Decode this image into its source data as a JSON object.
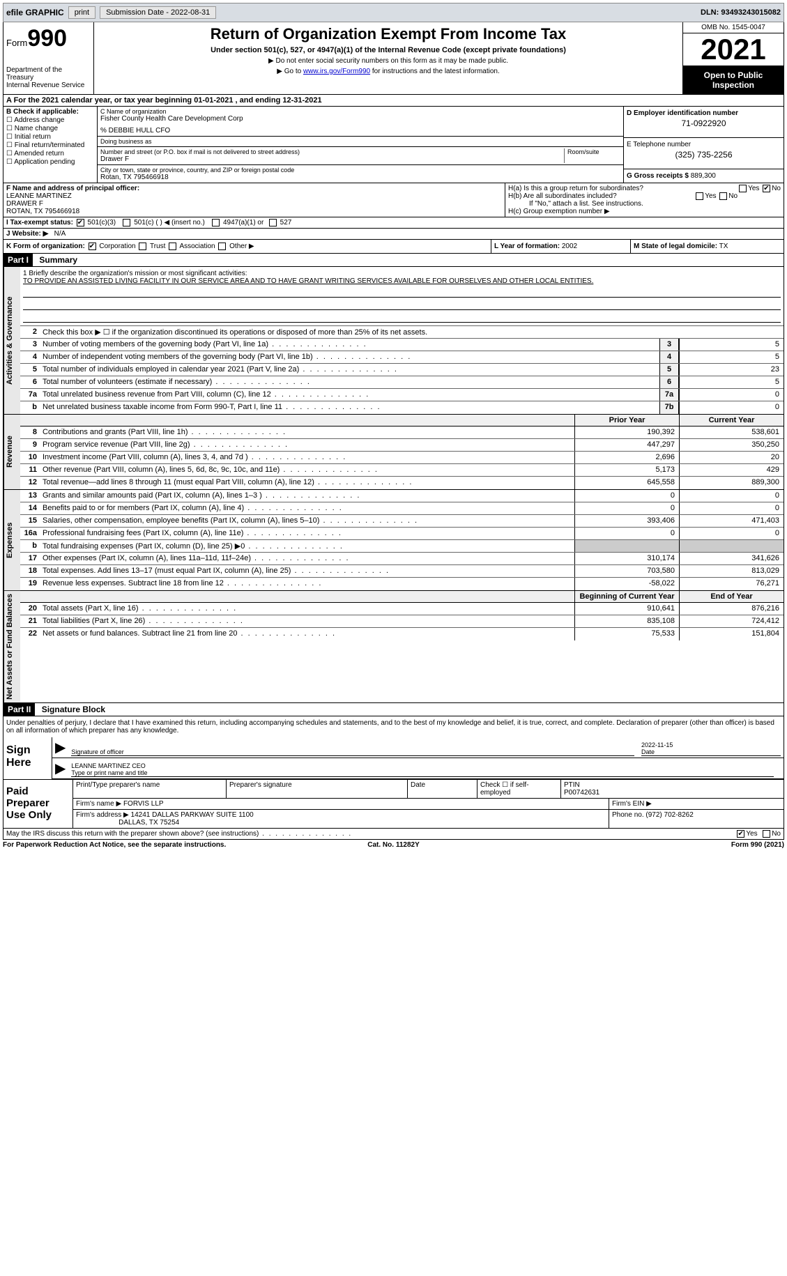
{
  "topbar": {
    "efile": "efile GRAPHIC",
    "print": "print",
    "submission_label": "Submission Date - 2022-08-31",
    "dln": "DLN: 93493243015082"
  },
  "header": {
    "form_label": "Form",
    "form_number": "990",
    "dept": "Department of the Treasury",
    "irs": "Internal Revenue Service",
    "title": "Return of Organization Exempt From Income Tax",
    "subtitle": "Under section 501(c), 527, or 4947(a)(1) of the Internal Revenue Code (except private foundations)",
    "note1": "▶ Do not enter social security numbers on this form as it may be made public.",
    "note2_pre": "▶ Go to ",
    "note2_link": "www.irs.gov/Form990",
    "note2_post": " for instructions and the latest information.",
    "omb": "OMB No. 1545-0047",
    "year": "2021",
    "open": "Open to Public Inspection"
  },
  "line_a": "A For the 2021 calendar year, or tax year beginning 01-01-2021   , and ending 12-31-2021",
  "col_b": {
    "label": "B Check if applicable:",
    "items": [
      "Address change",
      "Name change",
      "Initial return",
      "Final return/terminated",
      "Amended return",
      "Application pending"
    ]
  },
  "col_c": {
    "name_lbl": "C Name of organization",
    "name": "Fisher County Health Care Development Corp",
    "care_of": "% DEBBIE HULL CFO",
    "dba_lbl": "Doing business as",
    "addr_lbl": "Number and street (or P.O. box if mail is not delivered to street address)",
    "room_lbl": "Room/suite",
    "addr": "Drawer F",
    "city_lbl": "City or town, state or province, country, and ZIP or foreign postal code",
    "city": "Rotan, TX  795466918"
  },
  "col_d": {
    "lbl": "D Employer identification number",
    "val": "71-0922920"
  },
  "col_e": {
    "lbl": "E Telephone number",
    "val": "(325) 735-2256"
  },
  "col_g": {
    "lbl": "G Gross receipts $",
    "val": "889,300"
  },
  "col_f": {
    "lbl": "F Name and address of principal officer:",
    "name": "LEANNE MARTINEZ",
    "addr1": "DRAWER F",
    "addr2": "ROTAN, TX  795466918"
  },
  "col_h": {
    "a": "H(a)  Is this a group return for subordinates?",
    "b": "H(b)  Are all subordinates included?",
    "b_note": "If \"No,\" attach a list. See instructions.",
    "c": "H(c)  Group exemption number ▶",
    "yes": "Yes",
    "no": "No"
  },
  "row_i": {
    "lbl": "I  Tax-exempt status:",
    "o1": "501(c)(3)",
    "o2": "501(c) (  ) ◀ (insert no.)",
    "o3": "4947(a)(1) or",
    "o4": "527"
  },
  "row_j": {
    "lbl": "J  Website: ▶",
    "val": "N/A"
  },
  "row_k": {
    "lbl": "K Form of organization:",
    "o1": "Corporation",
    "o2": "Trust",
    "o3": "Association",
    "o4": "Other ▶"
  },
  "row_l": {
    "lbl": "L Year of formation:",
    "val": "2002"
  },
  "row_m": {
    "lbl": "M State of legal domicile:",
    "val": "TX"
  },
  "part1": {
    "hdr": "Part I",
    "title": "Summary"
  },
  "mission": {
    "lbl": "1   Briefly describe the organization's mission or most significant activities:",
    "text": "TO PROVIDE AN ASSISTED LIVING FACILITY IN OUR SERVICE AREA AND TO HAVE GRANT WRITING SERVICES AVAILABLE FOR OURSELVES AND OTHER LOCAL ENTITIES."
  },
  "line2": "Check this box ▶ ☐  if the organization discontinued its operations or disposed of more than 25% of its net assets.",
  "sections": {
    "gov": "Activities & Governance",
    "rev": "Revenue",
    "exp": "Expenses",
    "net": "Net Assets or Fund Balances"
  },
  "gov_lines": [
    {
      "n": "3",
      "d": "Number of voting members of the governing body (Part VI, line 1a)",
      "box": "3",
      "v": "5"
    },
    {
      "n": "4",
      "d": "Number of independent voting members of the governing body (Part VI, line 1b)",
      "box": "4",
      "v": "5"
    },
    {
      "n": "5",
      "d": "Total number of individuals employed in calendar year 2021 (Part V, line 2a)",
      "box": "5",
      "v": "23"
    },
    {
      "n": "6",
      "d": "Total number of volunteers (estimate if necessary)",
      "box": "6",
      "v": "5"
    },
    {
      "n": "7a",
      "d": "Total unrelated business revenue from Part VIII, column (C), line 12",
      "box": "7a",
      "v": "0"
    },
    {
      "n": "b",
      "d": "Net unrelated business taxable income from Form 990-T, Part I, line 11",
      "box": "7b",
      "v": "0"
    }
  ],
  "col_hdrs": {
    "prior": "Prior Year",
    "current": "Current Year"
  },
  "rev_lines": [
    {
      "n": "8",
      "d": "Contributions and grants (Part VIII, line 1h)",
      "p": "190,392",
      "c": "538,601"
    },
    {
      "n": "9",
      "d": "Program service revenue (Part VIII, line 2g)",
      "p": "447,297",
      "c": "350,250"
    },
    {
      "n": "10",
      "d": "Investment income (Part VIII, column (A), lines 3, 4, and 7d )",
      "p": "2,696",
      "c": "20"
    },
    {
      "n": "11",
      "d": "Other revenue (Part VIII, column (A), lines 5, 6d, 8c, 9c, 10c, and 11e)",
      "p": "5,173",
      "c": "429"
    },
    {
      "n": "12",
      "d": "Total revenue—add lines 8 through 11 (must equal Part VIII, column (A), line 12)",
      "p": "645,558",
      "c": "889,300"
    }
  ],
  "exp_lines": [
    {
      "n": "13",
      "d": "Grants and similar amounts paid (Part IX, column (A), lines 1–3 )",
      "p": "0",
      "c": "0"
    },
    {
      "n": "14",
      "d": "Benefits paid to or for members (Part IX, column (A), line 4)",
      "p": "0",
      "c": "0"
    },
    {
      "n": "15",
      "d": "Salaries, other compensation, employee benefits (Part IX, column (A), lines 5–10)",
      "p": "393,406",
      "c": "471,403"
    },
    {
      "n": "16a",
      "d": "Professional fundraising fees (Part IX, column (A), line 11e)",
      "p": "0",
      "c": "0"
    },
    {
      "n": "b",
      "d": "Total fundraising expenses (Part IX, column (D), line 25) ▶0",
      "p": "",
      "c": "",
      "shaded": true
    },
    {
      "n": "17",
      "d": "Other expenses (Part IX, column (A), lines 11a–11d, 11f–24e)",
      "p": "310,174",
      "c": "341,626"
    },
    {
      "n": "18",
      "d": "Total expenses. Add lines 13–17 (must equal Part IX, column (A), line 25)",
      "p": "703,580",
      "c": "813,029"
    },
    {
      "n": "19",
      "d": "Revenue less expenses. Subtract line 18 from line 12",
      "p": "-58,022",
      "c": "76,271"
    }
  ],
  "net_hdrs": {
    "begin": "Beginning of Current Year",
    "end": "End of Year"
  },
  "net_lines": [
    {
      "n": "20",
      "d": "Total assets (Part X, line 16)",
      "p": "910,641",
      "c": "876,216"
    },
    {
      "n": "21",
      "d": "Total liabilities (Part X, line 26)",
      "p": "835,108",
      "c": "724,412"
    },
    {
      "n": "22",
      "d": "Net assets or fund balances. Subtract line 21 from line 20",
      "p": "75,533",
      "c": "151,804"
    }
  ],
  "part2": {
    "hdr": "Part II",
    "title": "Signature Block"
  },
  "sig": {
    "decl": "Under penalties of perjury, I declare that I have examined this return, including accompanying schedules and statements, and to the best of my knowledge and belief, it is true, correct, and complete. Declaration of preparer (other than officer) is based on all information of which preparer has any knowledge.",
    "sign_here": "Sign Here",
    "sig_lbl": "Signature of officer",
    "date_lbl": "Date",
    "date_val": "2022-11-15",
    "name_lbl": "Type or print name and title",
    "name_val": "LEANNE MARTINEZ CEO"
  },
  "prep": {
    "label": "Paid Preparer Use Only",
    "name_lbl": "Print/Type preparer's name",
    "sig_lbl": "Preparer's signature",
    "date_lbl": "Date",
    "check_lbl": "Check ☐ if self-employed",
    "ptin_lbl": "PTIN",
    "ptin_val": "P00742631",
    "firm_lbl": "Firm's name    ▶",
    "firm_val": "FORVIS LLP",
    "ein_lbl": "Firm's EIN ▶",
    "addr_lbl": "Firm's address ▶",
    "addr_val1": "14241 DALLAS PARKWAY SUITE 1100",
    "addr_val2": "DALLAS, TX  75254",
    "phone_lbl": "Phone no.",
    "phone_val": "(972) 702-8262"
  },
  "discuss": {
    "q": "May the IRS discuss this return with the preparer shown above? (see instructions)",
    "yes": "Yes",
    "no": "No"
  },
  "footer": {
    "l": "For Paperwork Reduction Act Notice, see the separate instructions.",
    "c": "Cat. No. 11282Y",
    "r": "Form 990 (2021)"
  }
}
